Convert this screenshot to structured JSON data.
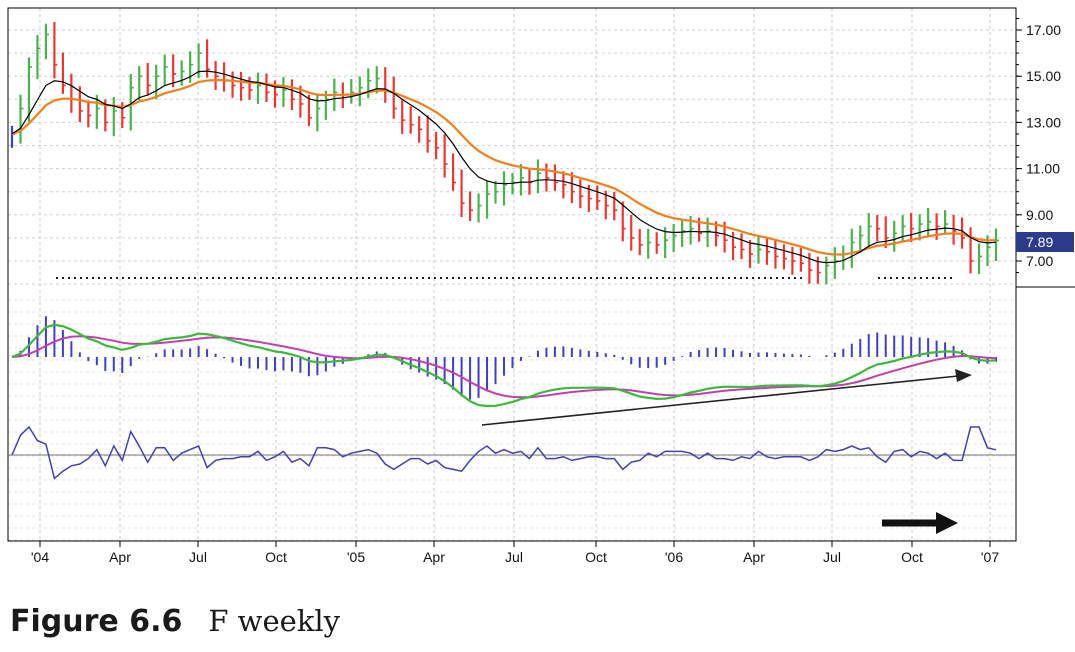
{
  "caption": {
    "number": "Figure 6.6",
    "title": "F weekly"
  },
  "chart_data": {
    "type": "bar",
    "price_ylim": [
      6.0,
      18.0
    ],
    "y_ticks": [
      "17.00",
      "15.00",
      "13.00",
      "11.00",
      "9.00",
      "7.00"
    ],
    "x_ticks": [
      "'04",
      "Apr",
      "Jul",
      "Oct",
      "'05",
      "Apr",
      "Jul",
      "Oct",
      "'06",
      "Apr",
      "Jul",
      "Oct",
      "'07"
    ],
    "last_price_label": "7.89",
    "last_price": 7.89,
    "colors": {
      "up": "#4caf50",
      "down": "#e53935",
      "neutral": "#3f3fbf",
      "ema_fast": "#000000",
      "ema_slow": "#f07f1e",
      "macd": "#3cb83c",
      "signal": "#c040b0",
      "histogram": "#3f3fbf",
      "lower": "#4040b0",
      "price_box": "#2c3a8c"
    },
    "weekly_closes": [
      12.5,
      13.6,
      15.4,
      16.2,
      16.8,
      15.5,
      14.6,
      14.0,
      13.5,
      13.3,
      13.6,
      13.0,
      13.5,
      13.2,
      14.5,
      15.0,
      14.6,
      15.0,
      15.4,
      15.1,
      15.2,
      15.5,
      16.0,
      15.3,
      15.0,
      14.8,
      14.6,
      14.5,
      14.4,
      14.6,
      14.3,
      14.2,
      14.4,
      14.0,
      13.8,
      13.2,
      13.6,
      14.0,
      14.3,
      14.2,
      14.3,
      14.5,
      14.8,
      14.9,
      14.4,
      13.6,
      13.1,
      12.9,
      12.7,
      12.2,
      11.9,
      11.2,
      10.4,
      9.5,
      9.2,
      9.4,
      9.9,
      10.0,
      10.3,
      10.4,
      10.6,
      10.4,
      10.8,
      10.6,
      10.4,
      10.3,
      10.0,
      9.8,
      9.7,
      9.6,
      9.4,
      9.2,
      8.4,
      8.0,
      7.7,
      7.8,
      7.7,
      7.9,
      8.1,
      8.3,
      8.4,
      8.2,
      8.3,
      8.1,
      7.9,
      7.6,
      7.5,
      7.3,
      7.5,
      7.4,
      7.2,
      7.1,
      7.0,
      6.9,
      6.6,
      6.5,
      6.8,
      7.0,
      7.3,
      7.8,
      8.1,
      8.5,
      8.4,
      8.0,
      8.2,
      8.5,
      8.4,
      8.6,
      8.7,
      8.5,
      8.6,
      8.3,
      8.0,
      7.0,
      7.2,
      7.6,
      7.89
    ]
  }
}
